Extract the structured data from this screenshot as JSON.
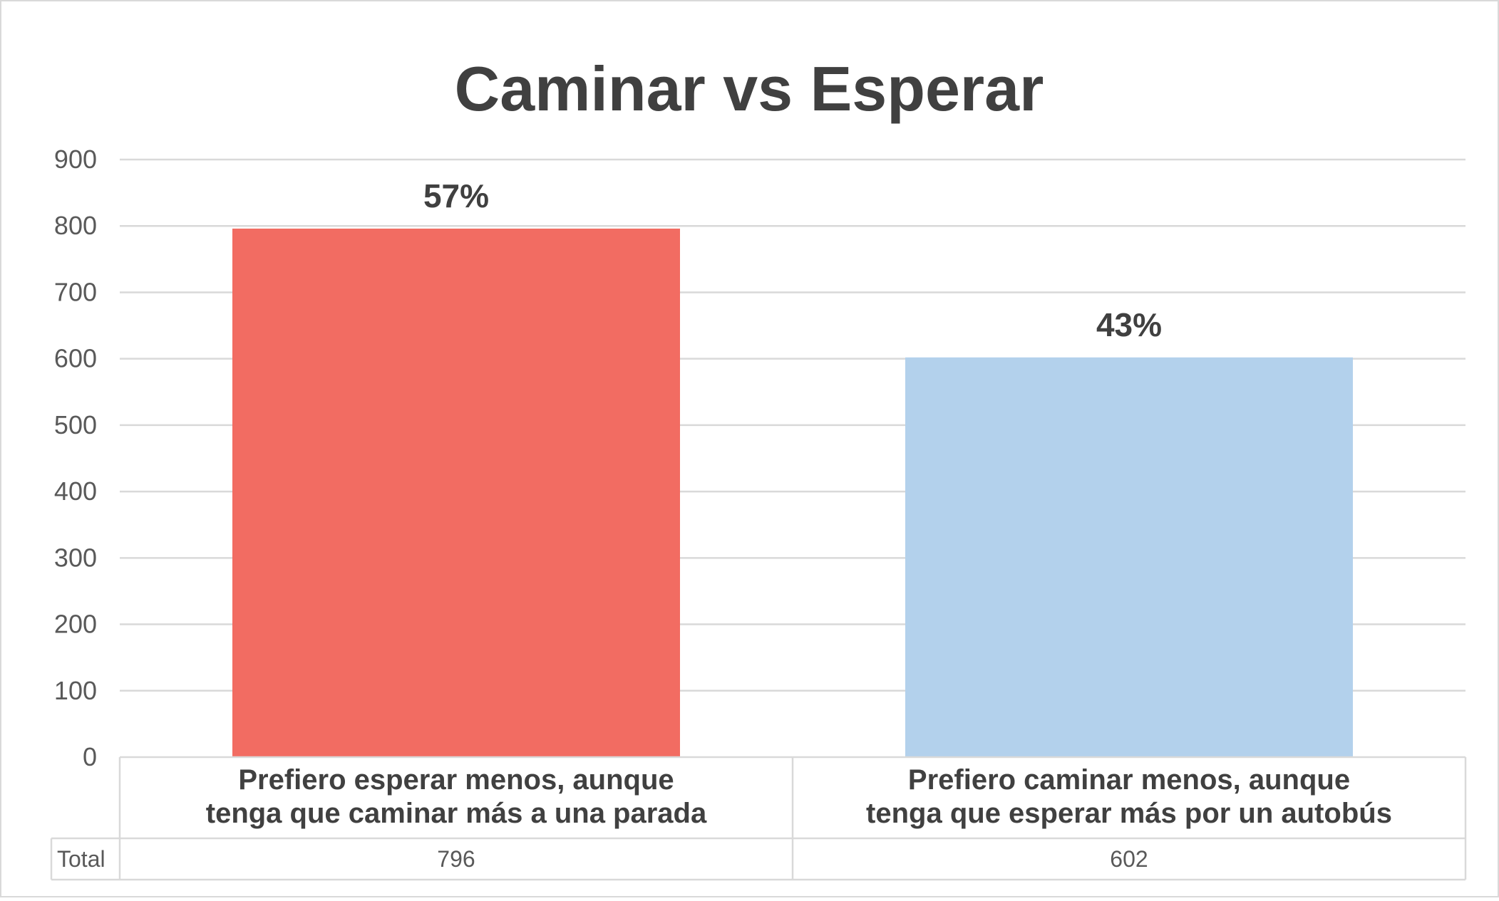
{
  "chart_data": {
    "type": "bar",
    "title": "Caminar vs Esperar",
    "categories": [
      [
        "Prefiero esperar menos, aunque",
        "tenga que caminar más a una parada"
      ],
      [
        "Prefiero caminar menos, aunque",
        "tenga que esperar más por un autobús"
      ]
    ],
    "values": [
      796,
      602
    ],
    "data_labels": [
      "57%",
      "43%"
    ],
    "colors": [
      "#F26C62",
      "#B3D1EC"
    ],
    "ylim": [
      0,
      900
    ],
    "y_ticks": [
      "0",
      "100",
      "200",
      "300",
      "400",
      "500",
      "600",
      "700",
      "800",
      "900"
    ],
    "y_tick_values": [
      0,
      100,
      200,
      300,
      400,
      500,
      600,
      700,
      800,
      900
    ],
    "grid": true,
    "xlabel": "",
    "ylabel": "",
    "data_table": {
      "row_label": "Total",
      "cells": [
        "796",
        "602"
      ]
    }
  },
  "colors": {
    "text": "#404040",
    "tick_text": "#595959",
    "grid": "#D9D9D9",
    "frame": "#D9D9D9"
  }
}
